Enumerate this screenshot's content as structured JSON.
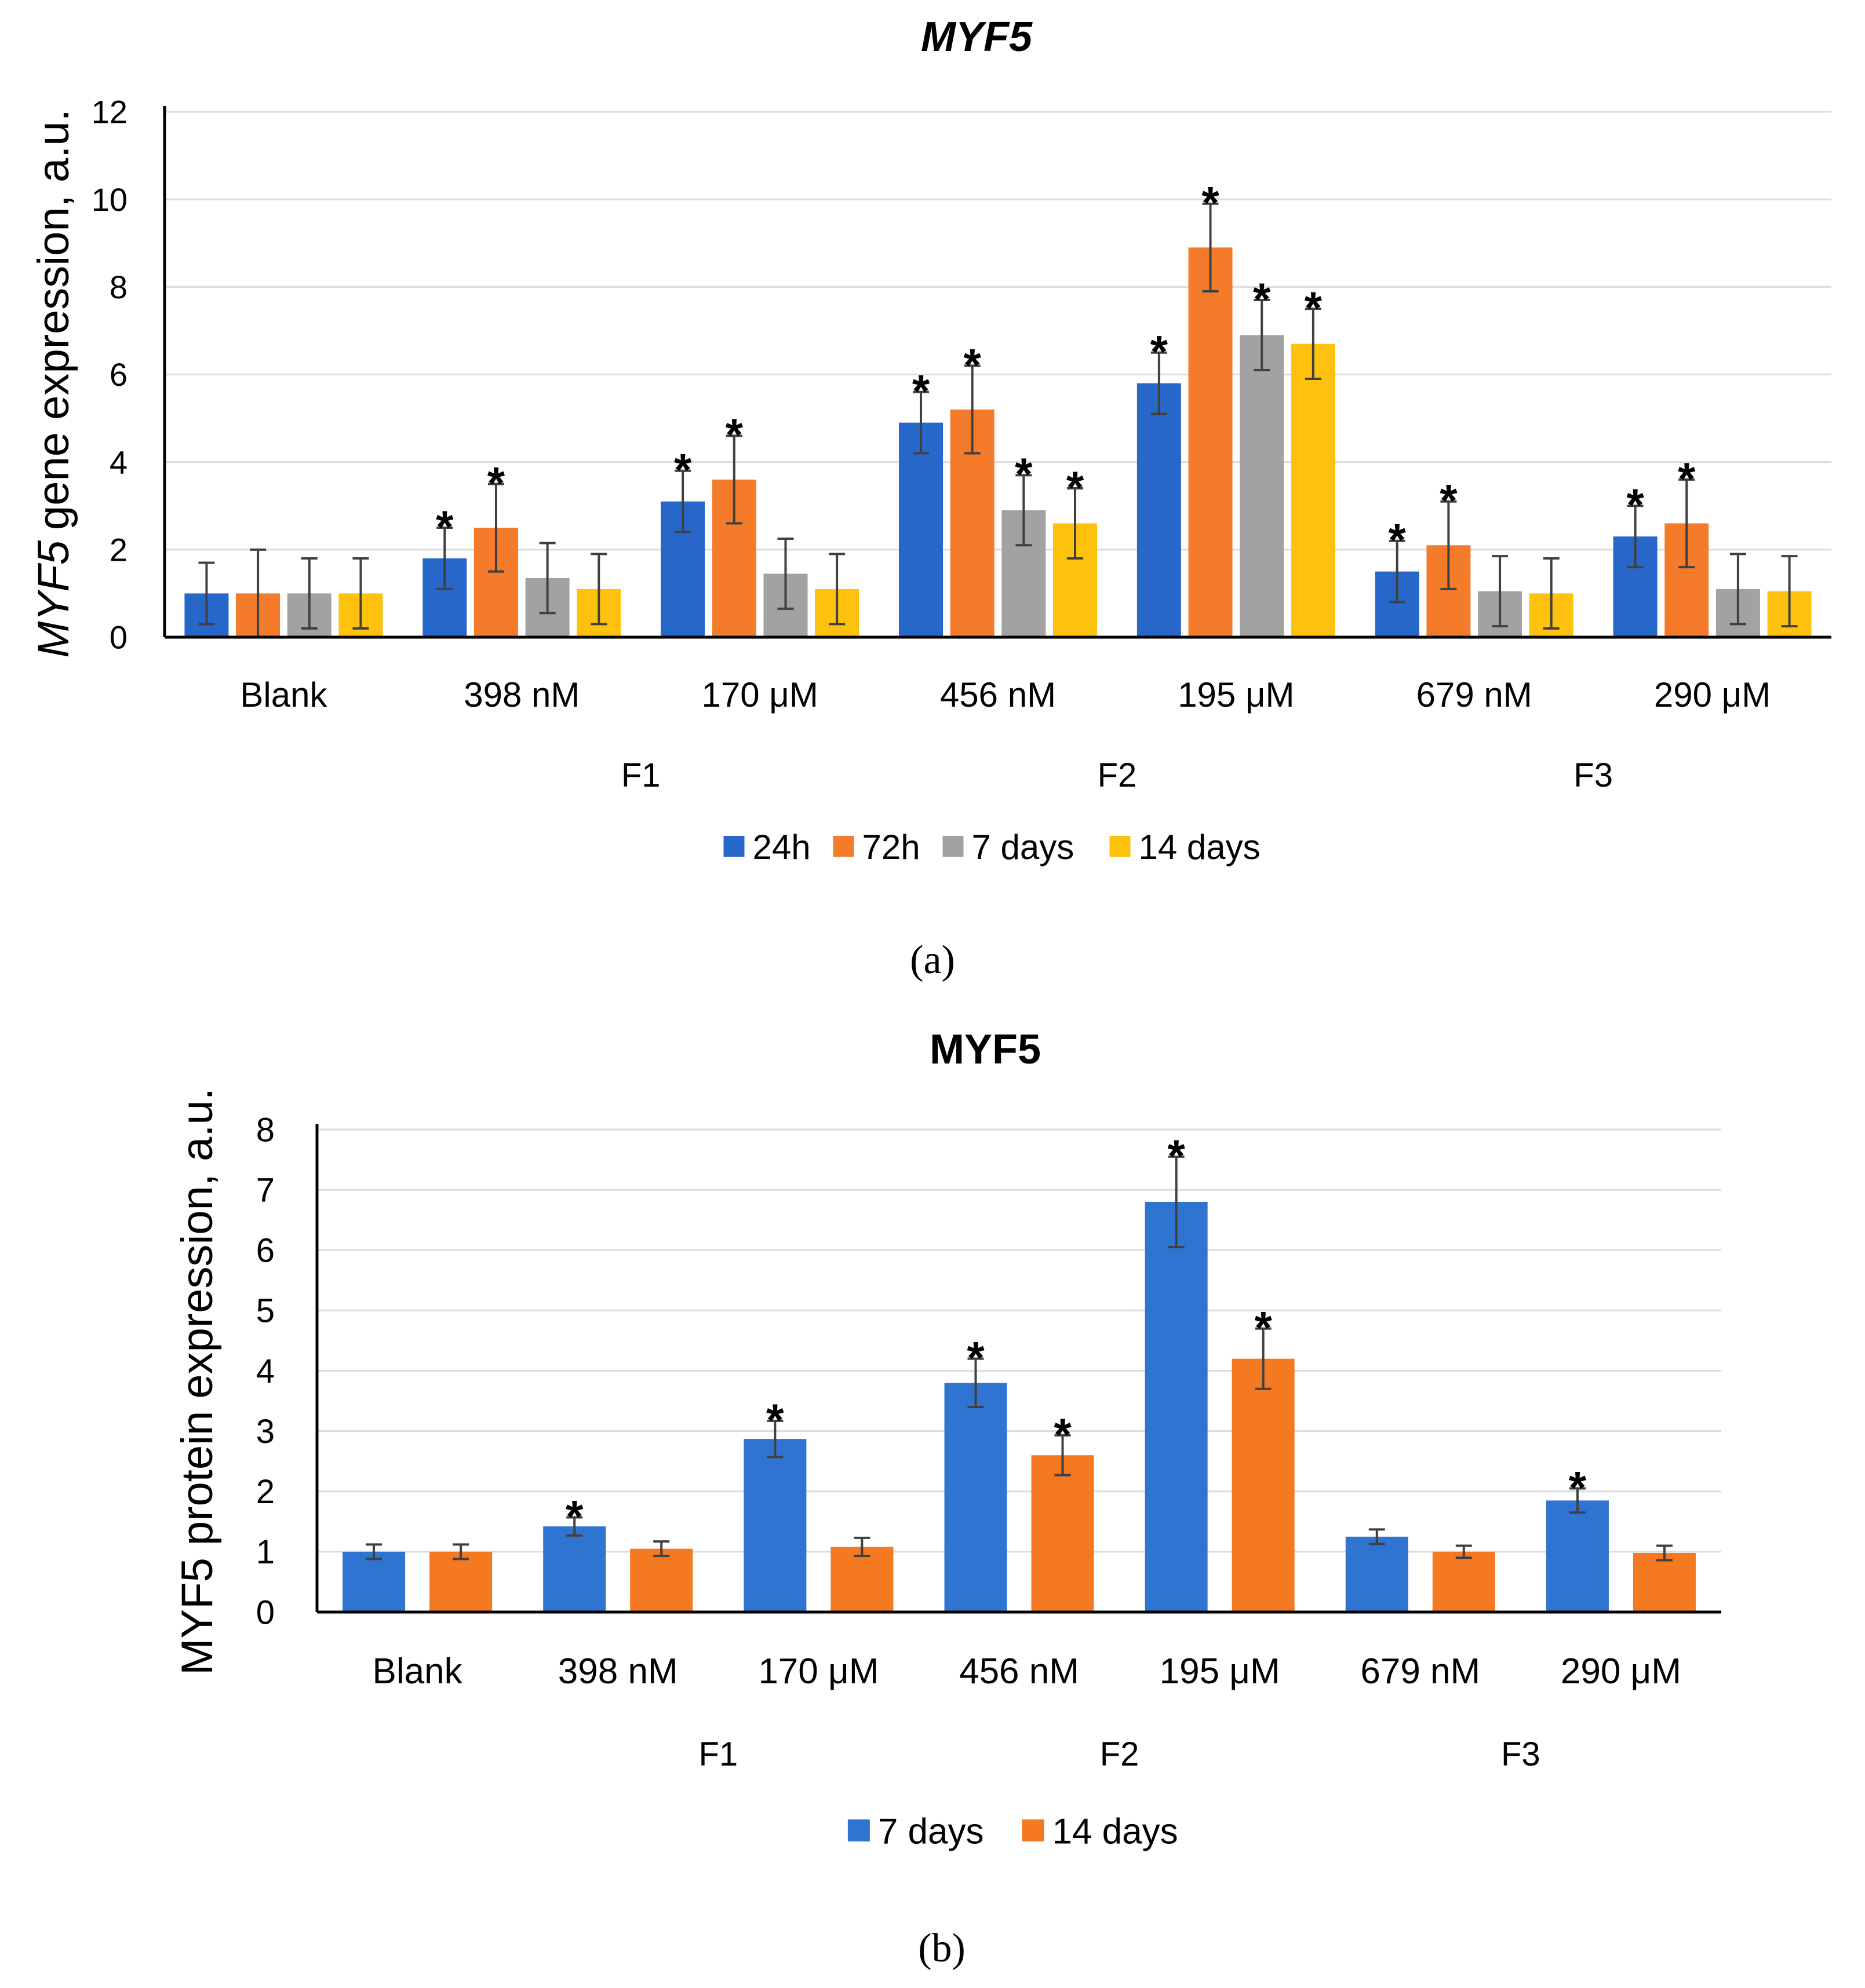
{
  "figure": {
    "caption_a": "(a)",
    "caption_b": "(b)"
  },
  "chart_data": [
    {
      "type": "bar",
      "panel": "a",
      "title": "MYF5",
      "ylabel": "gene expression, a.u.",
      "ylabel_gene": "MYF5",
      "xlabel": "",
      "ylim": [
        0,
        12
      ],
      "yticks": [
        0,
        2,
        4,
        6,
        8,
        10,
        12
      ],
      "grid": true,
      "legend_position": "bottom",
      "categories": [
        "Blank",
        "398 nM",
        "170  μM",
        "456 nM",
        "195  μM",
        "679 nM",
        "290  μM"
      ],
      "groups": [
        {
          "label": "F1",
          "categories": [
            "398 nM",
            "170  μM"
          ]
        },
        {
          "label": "F2",
          "categories": [
            "456 nM",
            "195  μM"
          ]
        },
        {
          "label": "F3",
          "categories": [
            "679 nM",
            "290  μM"
          ]
        }
      ],
      "series": [
        {
          "name": "24h",
          "color": "#2667C9",
          "values": [
            1.0,
            1.8,
            3.1,
            4.9,
            5.8,
            1.5,
            2.3
          ],
          "errors": [
            0.7,
            0.7,
            0.7,
            0.7,
            0.7,
            0.7,
            0.7
          ],
          "significant": [
            false,
            true,
            true,
            true,
            true,
            true,
            true
          ]
        },
        {
          "name": "72h",
          "color": "#F37B2A",
          "values": [
            1.0,
            2.5,
            3.6,
            5.2,
            8.9,
            2.1,
            2.6
          ],
          "errors": [
            1.0,
            1.0,
            1.0,
            1.0,
            1.0,
            1.0,
            1.0
          ],
          "significant": [
            false,
            true,
            true,
            true,
            true,
            true,
            true
          ]
        },
        {
          "name": "7 days",
          "color": "#A2A2A2",
          "values": [
            1.0,
            1.35,
            1.45,
            2.9,
            6.9,
            1.05,
            1.1
          ],
          "errors": [
            0.8,
            0.8,
            0.8,
            0.8,
            0.8,
            0.8,
            0.8
          ],
          "significant": [
            false,
            false,
            false,
            true,
            true,
            false,
            false
          ]
        },
        {
          "name": "14 days",
          "color": "#FDC10E",
          "values": [
            1.0,
            1.1,
            1.1,
            2.6,
            6.7,
            1.0,
            1.05
          ],
          "errors": [
            0.8,
            0.8,
            0.8,
            0.8,
            0.8,
            0.8,
            0.8
          ],
          "significant": [
            false,
            false,
            false,
            true,
            true,
            false,
            false
          ]
        }
      ],
      "significance_marker": "*"
    },
    {
      "type": "bar",
      "panel": "b",
      "title": "MYF5",
      "ylabel": "MYF5 protein expression, a.u.",
      "xlabel": "",
      "ylim": [
        0,
        8
      ],
      "yticks": [
        0,
        1,
        2,
        3,
        4,
        5,
        6,
        7,
        8
      ],
      "grid": true,
      "legend_position": "bottom",
      "categories": [
        "Blank",
        "398 nM",
        "170  μM",
        "456 nM",
        "195    μM",
        "679 nM",
        "290  μM"
      ],
      "groups": [
        {
          "label": "F1",
          "categories": [
            "398 nM",
            "170  μM"
          ]
        },
        {
          "label": "F2",
          "categories": [
            "456 nM",
            "195    μM"
          ]
        },
        {
          "label": "F3",
          "categories": [
            "679 nM",
            "290  μM"
          ]
        }
      ],
      "series": [
        {
          "name": "7 days",
          "color": "#2F74D0",
          "values": [
            1.0,
            1.42,
            2.87,
            3.8,
            6.8,
            1.25,
            1.85
          ],
          "errors": [
            0.12,
            0.15,
            0.3,
            0.4,
            0.75,
            0.12,
            0.2
          ],
          "significant": [
            false,
            true,
            true,
            true,
            true,
            false,
            true
          ]
        },
        {
          "name": "14 days",
          "color": "#F47920",
          "values": [
            1.0,
            1.05,
            1.08,
            2.6,
            4.2,
            1.0,
            0.98
          ],
          "errors": [
            0.12,
            0.12,
            0.15,
            0.33,
            0.5,
            0.1,
            0.12
          ],
          "significant": [
            false,
            false,
            false,
            true,
            true,
            false,
            false
          ]
        }
      ],
      "significance_marker": "*"
    }
  ]
}
